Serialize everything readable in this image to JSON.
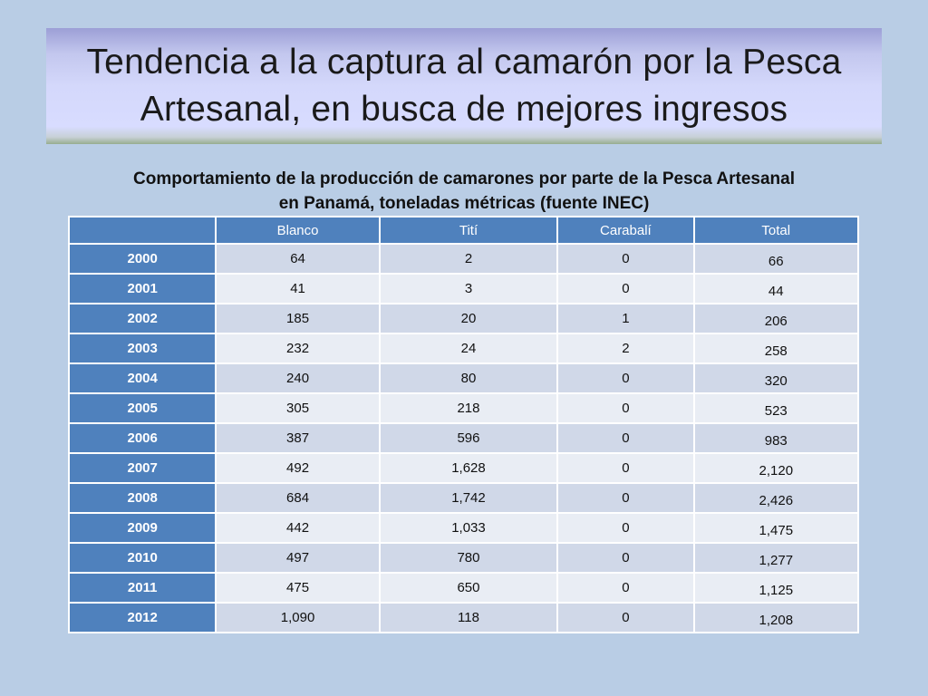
{
  "slide": {
    "title_line1": "Tendencia a la captura al camarón por la Pesca",
    "title_line2": "Artesanal, en busca de mejores ingresos",
    "subtitle_line1": "Comportamiento de la producción de camarones por parte de la Pesca Artesanal",
    "subtitle_line2": "en Panamá, toneladas métricas (fuente INEC)"
  },
  "table": {
    "headers": [
      "",
      "Blanco",
      "Tití",
      "Carabalí",
      "Total"
    ],
    "rows": [
      {
        "year": "2000",
        "blanco": "64",
        "titi": "2",
        "carabali": "0",
        "total": "66"
      },
      {
        "year": "2001",
        "blanco": "41",
        "titi": "3",
        "carabali": "0",
        "total": "44"
      },
      {
        "year": "2002",
        "blanco": "185",
        "titi": "20",
        "carabali": "1",
        "total": "206"
      },
      {
        "year": "2003",
        "blanco": "232",
        "titi": "24",
        "carabali": "2",
        "total": "258"
      },
      {
        "year": "2004",
        "blanco": "240",
        "titi": "80",
        "carabali": "0",
        "total": "320"
      },
      {
        "year": "2005",
        "blanco": "305",
        "titi": "218",
        "carabali": "0",
        "total": "523"
      },
      {
        "year": "2006",
        "blanco": "387",
        "titi": "596",
        "carabali": "0",
        "total": "983"
      },
      {
        "year": "2007",
        "blanco": "492",
        "titi": "1,628",
        "carabali": "0",
        "total": "2,120"
      },
      {
        "year": "2008",
        "blanco": "684",
        "titi": "1,742",
        "carabali": "0",
        "total": "2,426"
      },
      {
        "year": "2009",
        "blanco": "442",
        "titi": "1,033",
        "carabali": "0",
        "total": "1,475"
      },
      {
        "year": "2010",
        "blanco": "497",
        "titi": "780",
        "carabali": "0",
        "total": "1,277"
      },
      {
        "year": "2011",
        "blanco": "475",
        "titi": "650",
        "carabali": "0",
        "total": "1,125"
      },
      {
        "year": "2012",
        "blanco": "1,090",
        "titi": "118",
        "carabali": "0",
        "total": "1,208"
      }
    ]
  },
  "colors": {
    "background": "#b9cde5",
    "header_fill": "#4f81bd",
    "row_odd": "#d0d8e8",
    "row_even": "#e9edf4"
  }
}
